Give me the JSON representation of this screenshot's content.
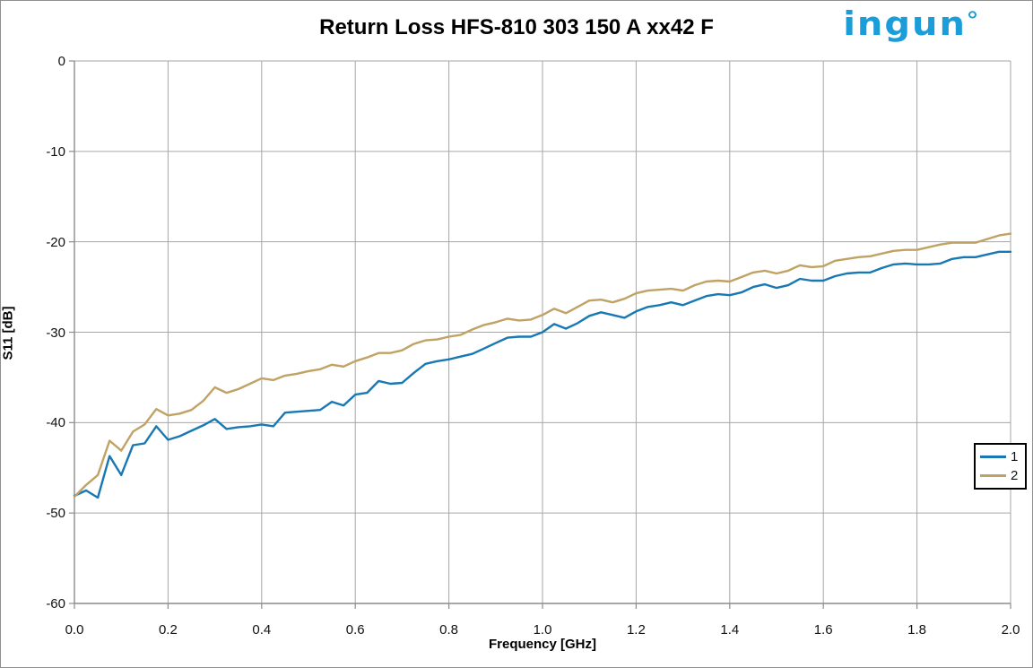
{
  "header": {
    "title": "Return Loss HFS-810 303 150 A xx42 F",
    "logo_text": "ingun",
    "logo_color": "#1a9dd9"
  },
  "colors": {
    "series1_blue": "#1878b4",
    "series2_tan": "#c0a264",
    "gridline": "#a6a6a6",
    "axis": "#8c8c8c",
    "legend_border": "#000000"
  },
  "chart_data": {
    "type": "line",
    "title": "Return Loss HFS-810 303 150 A xx42 F",
    "xlabel": "Frequency [GHz]",
    "ylabel": "S11 [dB]",
    "xlim": [
      0.0,
      2.0
    ],
    "ylim": [
      -60,
      0
    ],
    "grid": true,
    "legend_position": "right-middle",
    "x_tick_labels": [
      "0.0",
      "0.2",
      "0.4",
      "0.6",
      "0.8",
      "1.0",
      "1.2",
      "1.4",
      "1.6",
      "1.8",
      "2.0"
    ],
    "y_tick_labels": [
      "0",
      "-10",
      "-20",
      "-30",
      "-40",
      "-50",
      "-60"
    ],
    "x": [
      0.0,
      0.025,
      0.05,
      0.075,
      0.1,
      0.125,
      0.15,
      0.175,
      0.2,
      0.225,
      0.25,
      0.275,
      0.3,
      0.325,
      0.35,
      0.375,
      0.4,
      0.425,
      0.45,
      0.475,
      0.5,
      0.525,
      0.55,
      0.575,
      0.6,
      0.625,
      0.65,
      0.675,
      0.7,
      0.725,
      0.75,
      0.775,
      0.8,
      0.825,
      0.85,
      0.875,
      0.9,
      0.925,
      0.95,
      0.975,
      1.0,
      1.025,
      1.05,
      1.075,
      1.1,
      1.125,
      1.15,
      1.175,
      1.2,
      1.225,
      1.25,
      1.275,
      1.3,
      1.325,
      1.35,
      1.375,
      1.4,
      1.425,
      1.45,
      1.475,
      1.5,
      1.525,
      1.55,
      1.575,
      1.6,
      1.625,
      1.65,
      1.675,
      1.7,
      1.725,
      1.75,
      1.775,
      1.8,
      1.825,
      1.85,
      1.875,
      1.9,
      1.925,
      1.95,
      1.975,
      2.0
    ],
    "series": [
      {
        "name": "1",
        "color": "#1878b4",
        "values": [
          -48.1,
          -47.5,
          -48.3,
          -43.7,
          -45.8,
          -42.5,
          -42.3,
          -40.4,
          -41.9,
          -41.5,
          -40.9,
          -40.3,
          -39.6,
          -40.7,
          -40.5,
          -40.4,
          -40.2,
          -40.4,
          -38.9,
          -38.8,
          -38.7,
          -38.6,
          -37.7,
          -38.1,
          -36.9,
          -36.7,
          -35.4,
          -35.7,
          -35.6,
          -34.5,
          -33.5,
          -33.2,
          -33.0,
          -32.7,
          -32.4,
          -31.8,
          -31.2,
          -30.6,
          -30.5,
          -30.5,
          -30.0,
          -29.1,
          -29.6,
          -29.0,
          -28.2,
          -27.8,
          -28.1,
          -28.4,
          -27.7,
          -27.2,
          -27.0,
          -26.7,
          -27.0,
          -26.5,
          -26.0,
          -25.8,
          -25.9,
          -25.6,
          -25.0,
          -24.7,
          -25.1,
          -24.8,
          -24.1,
          -24.3,
          -24.3,
          -23.8,
          -23.5,
          -23.4,
          -23.4,
          -22.9,
          -22.5,
          -22.4,
          -22.5,
          -22.5,
          -22.4,
          -21.9,
          -21.7,
          -21.7,
          -21.4,
          -21.1,
          -21.1
        ]
      },
      {
        "name": "2",
        "color": "#c0a264",
        "values": [
          -48.2,
          -46.9,
          -45.8,
          -42.0,
          -43.1,
          -41.0,
          -40.2,
          -38.5,
          -39.2,
          -39.0,
          -38.6,
          -37.6,
          -36.1,
          -36.7,
          -36.3,
          -35.7,
          -35.1,
          -35.3,
          -34.8,
          -34.6,
          -34.3,
          -34.1,
          -33.6,
          -33.8,
          -33.2,
          -32.8,
          -32.3,
          -32.3,
          -32.0,
          -31.3,
          -30.9,
          -30.8,
          -30.5,
          -30.3,
          -29.7,
          -29.2,
          -28.9,
          -28.5,
          -28.7,
          -28.6,
          -28.1,
          -27.4,
          -27.9,
          -27.2,
          -26.5,
          -26.4,
          -26.7,
          -26.3,
          -25.7,
          -25.4,
          -25.3,
          -25.2,
          -25.4,
          -24.8,
          -24.4,
          -24.3,
          -24.4,
          -23.9,
          -23.4,
          -23.2,
          -23.5,
          -23.2,
          -22.6,
          -22.8,
          -22.7,
          -22.1,
          -21.9,
          -21.7,
          -21.6,
          -21.3,
          -21.0,
          -20.9,
          -20.9,
          -20.6,
          -20.3,
          -20.1,
          -20.1,
          -20.1,
          -19.7,
          -19.3,
          -19.1
        ]
      }
    ]
  }
}
